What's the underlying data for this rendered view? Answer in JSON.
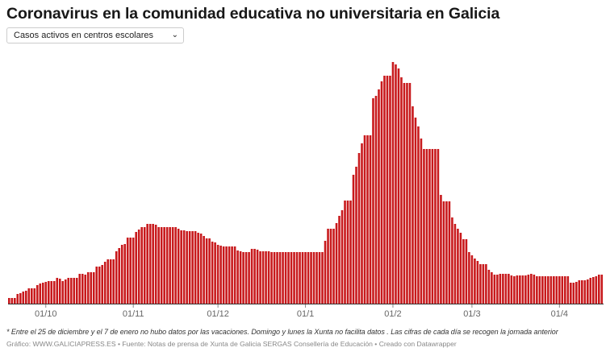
{
  "header": {
    "title": "Coronavirus en la comunidad educativa no universitaria en Galicia",
    "dropdown": {
      "selected": "Casos activos en centros escolares",
      "icon": "chevron-down-icon"
    }
  },
  "footer": {
    "note": "* Entre el 25 de diciembre y el 7 de enero no hubo datos por las vacaciones. Domingo y lunes la Xunta no facilita datos . Las cifras de cada día se recogen la jornada anterior",
    "source": "Gráfico: WWW.GALICIAPRESS.ES • Fuente: Notas de prensa de Xunta de Galicia SERGAS Consellería de Educación • Creado con Datawrapper"
  },
  "chart_data": {
    "type": "bar",
    "title": "",
    "xlabel": "",
    "ylabel": "",
    "y_axis_shown": false,
    "grid": false,
    "bar_color": "#c8191c",
    "x_ticks": [
      "01/10",
      "01/11",
      "01/12",
      "01/1",
      "01/2",
      "01/3",
      "01/4"
    ],
    "categories": [
      "18/09",
      "19/09",
      "20/09",
      "21/09",
      "22/09",
      "23/09",
      "24/09",
      "25/09",
      "26/09",
      "27/09",
      "28/09",
      "29/09",
      "30/09",
      "01/10",
      "02/10",
      "03/10",
      "04/10",
      "05/10",
      "06/10",
      "07/10",
      "08/10",
      "09/10",
      "10/10",
      "11/10",
      "12/10",
      "13/10",
      "14/10",
      "15/10",
      "16/10",
      "17/10",
      "18/10",
      "19/10",
      "20/10",
      "21/10",
      "22/10",
      "23/10",
      "24/10",
      "25/10",
      "26/10",
      "27/10",
      "28/10",
      "29/10",
      "30/10",
      "31/10",
      "01/11",
      "02/11",
      "03/11",
      "04/11",
      "05/11",
      "06/11",
      "07/11",
      "08/11",
      "09/11",
      "10/11",
      "11/11",
      "12/11",
      "13/11",
      "14/11",
      "15/11",
      "16/11",
      "17/11",
      "18/11",
      "19/11",
      "20/11",
      "21/11",
      "22/11",
      "23/11",
      "24/11",
      "25/11",
      "26/11",
      "27/11",
      "28/11",
      "29/11",
      "30/11",
      "01/12",
      "02/12",
      "03/12",
      "04/12",
      "05/12",
      "06/12",
      "07/12",
      "08/12",
      "09/12",
      "10/12",
      "11/12",
      "12/12",
      "13/12",
      "14/12",
      "15/12",
      "16/12",
      "17/12",
      "18/12",
      "19/12",
      "20/12",
      "21/12",
      "22/12",
      "23/12",
      "24/12",
      "25/12",
      "26/12",
      "27/12",
      "28/12",
      "29/12",
      "30/12",
      "31/12",
      "01/1",
      "02/1",
      "03/1",
      "04/1",
      "05/1",
      "06/1",
      "07/1",
      "08/1",
      "09/1",
      "10/1",
      "11/1",
      "12/1",
      "13/1",
      "14/1",
      "15/1",
      "16/1",
      "17/1",
      "18/1",
      "19/1",
      "20/1",
      "21/1",
      "22/1",
      "23/1",
      "24/1",
      "25/1",
      "26/1",
      "27/1",
      "28/1",
      "29/1",
      "30/1",
      "31/1",
      "01/2",
      "02/2",
      "03/2",
      "04/2",
      "05/2",
      "06/2",
      "07/2",
      "08/2",
      "09/2",
      "10/2",
      "11/2",
      "12/2",
      "13/2",
      "14/2",
      "15/2",
      "16/2",
      "17/2",
      "18/2",
      "19/2",
      "20/2",
      "21/2",
      "22/2",
      "23/2",
      "24/2",
      "25/2",
      "26/2",
      "27/2",
      "28/2",
      "01/3",
      "02/3",
      "03/3",
      "04/3",
      "05/3",
      "06/3",
      "07/3",
      "08/3",
      "09/3",
      "10/3",
      "11/3",
      "12/3",
      "13/3",
      "14/3",
      "15/3",
      "16/3",
      "17/3",
      "18/3",
      "19/3",
      "20/3",
      "21/3",
      "22/3",
      "23/3",
      "24/3",
      "25/3",
      "26/3",
      "27/3",
      "28/3",
      "29/3",
      "30/3",
      "31/3",
      "01/4",
      "02/4",
      "03/4",
      "04/4",
      "05/4",
      "06/4",
      "07/4",
      "08/4",
      "09/4",
      "10/4",
      "11/4",
      "12/4",
      "13/4",
      "14/4",
      "15/4",
      "16/4"
    ],
    "values": [
      7,
      7,
      7,
      12,
      13,
      15,
      16,
      19,
      19,
      19,
      23,
      25,
      26,
      27,
      28,
      28,
      28,
      32,
      31,
      28,
      30,
      32,
      32,
      32,
      32,
      37,
      37,
      36,
      39,
      39,
      39,
      46,
      46,
      48,
      52,
      55,
      55,
      55,
      65,
      69,
      73,
      74,
      82,
      82,
      82,
      89,
      92,
      95,
      95,
      99,
      99,
      99,
      98,
      95,
      95,
      95,
      95,
      95,
      95,
      95,
      93,
      91,
      91,
      90,
      90,
      90,
      90,
      88,
      87,
      84,
      81,
      81,
      77,
      76,
      73,
      72,
      71,
      71,
      71,
      71,
      71,
      66,
      65,
      64,
      64,
      64,
      68,
      68,
      67,
      65,
      65,
      65,
      65,
      64,
      64,
      64,
      64,
      64,
      64,
      64,
      64,
      64,
      64,
      64,
      64,
      64,
      64,
      64,
      64,
      64,
      64,
      64,
      78,
      93,
      93,
      93,
      100,
      109,
      116,
      128,
      128,
      128,
      160,
      170,
      187,
      199,
      209,
      209,
      209,
      255,
      258,
      266,
      276,
      283,
      283,
      283,
      300,
      297,
      292,
      281,
      274,
      274,
      274,
      245,
      231,
      220,
      205,
      192,
      192,
      192,
      192,
      192,
      192,
      135,
      127,
      127,
      127,
      107,
      99,
      93,
      88,
      80,
      80,
      64,
      60,
      56,
      53,
      49,
      49,
      49,
      42,
      39,
      36,
      36,
      37,
      37,
      37,
      37,
      35,
      34,
      35,
      35,
      35,
      35,
      36,
      37,
      36,
      34,
      34,
      34,
      34,
      34,
      34,
      34,
      34,
      34,
      34,
      34,
      34,
      26,
      26,
      27,
      29,
      29,
      29,
      30,
      32,
      33,
      34,
      36,
      36
    ]
  }
}
